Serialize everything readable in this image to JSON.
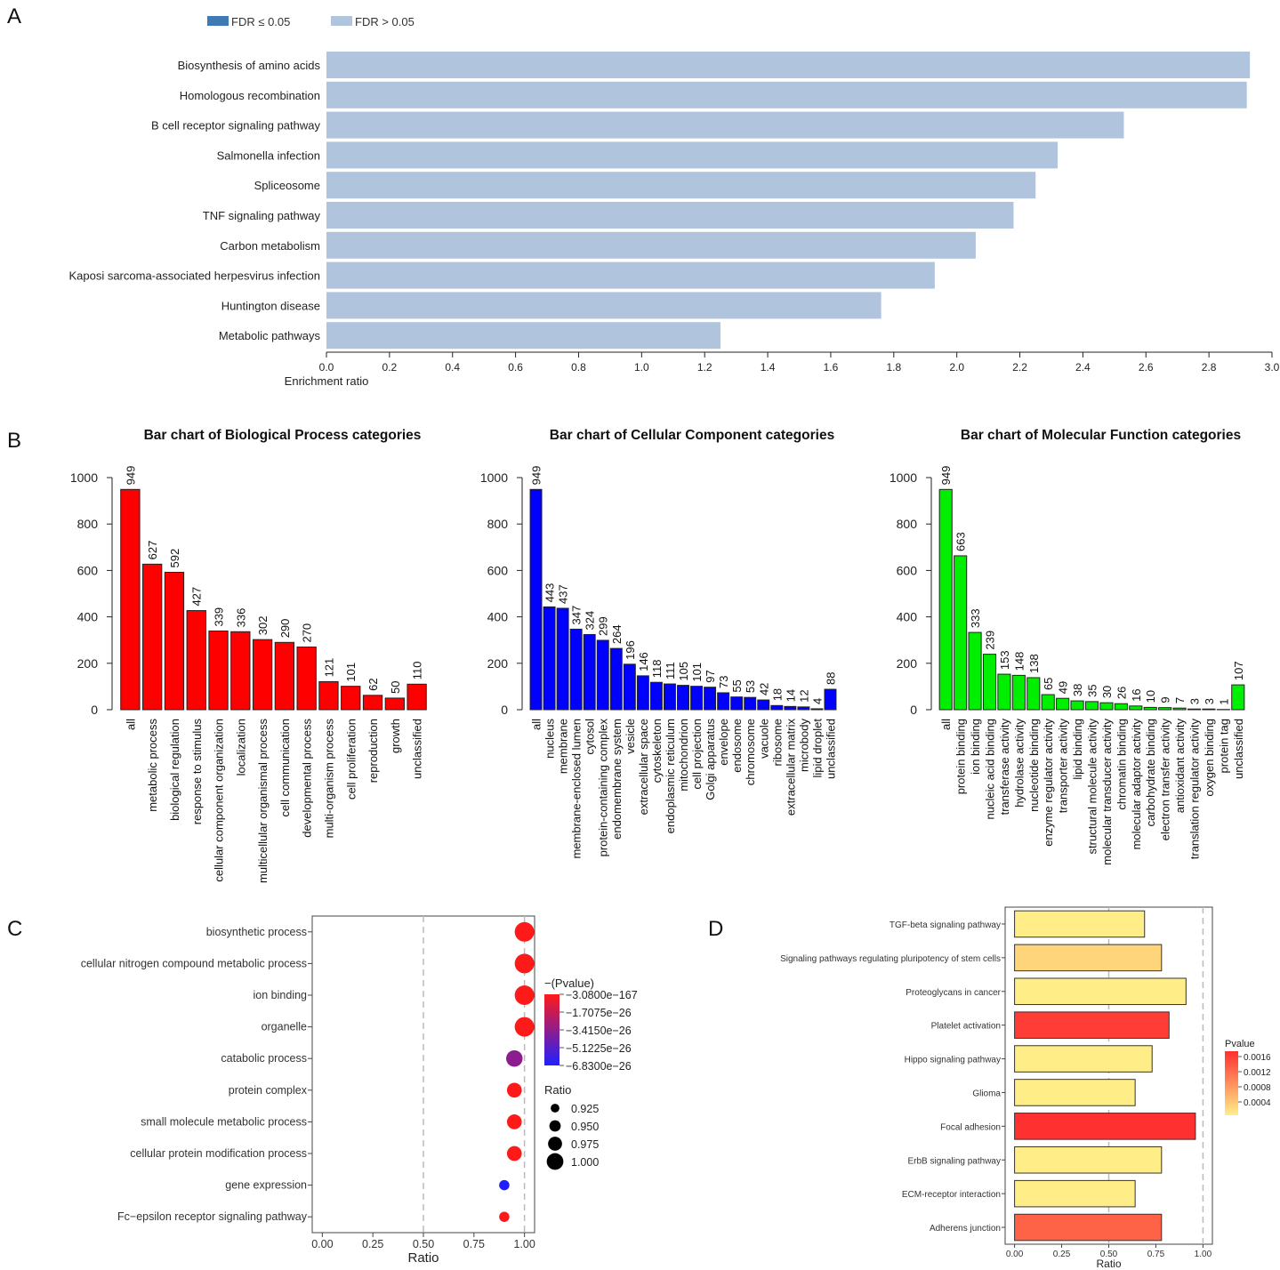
{
  "panel_labels": [
    "A",
    "B",
    "C",
    "D"
  ],
  "chart_data": [
    {
      "panel": "A",
      "type": "bar",
      "orientation": "horizontal",
      "legend": [
        {
          "label": "FDR ≤ 0.05",
          "color": "#3f7ab5"
        },
        {
          "label": "FDR > 0.05",
          "color": "#b0c4de"
        }
      ],
      "categories": [
        "Biosynthesis of amino acids",
        "Homologous recombination",
        "B cell receptor signaling pathway",
        "Salmonella infection",
        "Spliceosome",
        "TNF signaling pathway",
        "Carbon metabolism",
        "Kaposi sarcoma-associated herpesvirus infection",
        "Huntington disease",
        "Metabolic pathways"
      ],
      "values": [
        2.93,
        2.92,
        2.53,
        2.32,
        2.25,
        2.18,
        2.06,
        1.93,
        1.76,
        1.25
      ],
      "bar_color": "#b0c4de",
      "xlabel": "Enrichment ratio",
      "xlim": [
        0,
        3.0
      ],
      "xticks": [
        "0.0",
        "0.2",
        "0.4",
        "0.6",
        "0.8",
        "1.0",
        "1.2",
        "1.4",
        "1.6",
        "1.8",
        "2.0",
        "2.2",
        "2.4",
        "2.6",
        "2.8",
        "3.0"
      ]
    },
    {
      "panel": "B",
      "type": "bar",
      "title": "Bar chart of Biological Process categories",
      "categories": [
        "all",
        "metabolic process",
        "biological regulation",
        "response to stimulus",
        "cellular component organization",
        "localization",
        "multicellular organismal process",
        "cell communication",
        "developmental process",
        "multi-organism process",
        "cell proliferation",
        "reproduction",
        "growth",
        "unclassified"
      ],
      "values": [
        949,
        627,
        592,
        427,
        339,
        336,
        302,
        290,
        270,
        121,
        101,
        62,
        50,
        110
      ],
      "value_labels": [
        "949",
        "627",
        "592",
        "427",
        "339",
        "336",
        "302",
        "290",
        "270",
        "121",
        "101",
        "62",
        "50",
        "110"
      ],
      "color": "#ff0000",
      "ylim": [
        0,
        1000
      ],
      "yticks": [
        "0",
        "200",
        "400",
        "600",
        "800",
        "1000"
      ]
    },
    {
      "panel": "B",
      "type": "bar",
      "title": "Bar chart of Cellular Component categories",
      "categories": [
        "all",
        "nucleus",
        "membrane",
        "membrane-enclosed lumen",
        "cytosol",
        "protein-containing complex",
        "endomembrane system",
        "vesicle",
        "extracellular space",
        "cytoskeleton",
        "endoplasmic reticulum",
        "mitochondrion",
        "cell projection",
        "Golgi apparatus",
        "envelope",
        "endosome",
        "chromosome",
        "vacuole",
        "ribosome",
        "extracellular matrix",
        "microbody",
        "lipid droplet",
        "unclassified"
      ],
      "values": [
        949,
        443,
        437,
        347,
        324,
        299,
        264,
        196,
        146,
        118,
        111,
        105,
        101,
        97,
        73,
        55,
        53,
        42,
        18,
        14,
        12,
        4,
        88
      ],
      "value_labels": [
        "949",
        "443",
        "437",
        "347",
        "324",
        "299",
        "264",
        "196",
        "146",
        "118",
        "111",
        "105",
        "101",
        "97",
        "73",
        "55",
        "53",
        "42",
        "18",
        "14",
        "12",
        "4",
        "88"
      ],
      "color": "#0000ff",
      "ylim": [
        0,
        1000
      ],
      "yticks": [
        "0",
        "200",
        "400",
        "600",
        "800",
        "1000"
      ]
    },
    {
      "panel": "B",
      "type": "bar",
      "title": "Bar chart of Molecular Function categories",
      "categories": [
        "all",
        "protein binding",
        "ion binding",
        "nucleic acid binding",
        "transferase activity",
        "hydrolase activity",
        "nucleotide binding",
        "enzyme regulator activity",
        "transporter activity",
        "lipid binding",
        "structural molecule activity",
        "molecular transducer activity",
        "chromatin binding",
        "molecular adaptor activity",
        "carbohydrate binding",
        "electron transfer activity",
        "antioxidant activity",
        "translation regulator activity",
        "oxygen binding",
        "protein tag",
        "unclassified"
      ],
      "values": [
        949,
        663,
        333,
        239,
        153,
        148,
        138,
        65,
        49,
        38,
        35,
        30,
        26,
        16,
        10,
        9,
        7,
        3,
        3,
        1,
        107
      ],
      "value_labels": [
        "949",
        "663",
        "333",
        "239",
        "153",
        "148",
        "138",
        "65",
        "49",
        "38",
        "35",
        "30",
        "26",
        "16",
        "10",
        "9",
        "7",
        "3",
        "3",
        "1",
        "107"
      ],
      "color": "#00ee00",
      "ylim": [
        0,
        1000
      ],
      "yticks": [
        "0",
        "200",
        "400",
        "600",
        "800",
        "1000"
      ]
    },
    {
      "panel": "C",
      "type": "scatter",
      "categories": [
        "biosynthetic process",
        "cellular nitrogen compound metabolic process",
        "ion binding",
        "organelle",
        "catabolic process",
        "protein complex",
        "small molecule metabolic process",
        "cellular protein modification process",
        "gene expression",
        "Fc−epsilon receptor signaling pathway"
      ],
      "ratio": [
        1.0,
        1.0,
        1.0,
        1.0,
        0.95,
        0.95,
        0.95,
        0.95,
        0.9,
        0.9
      ],
      "bubble_size": [
        1.0,
        1.0,
        1.0,
        1.0,
        0.975,
        0.962,
        0.962,
        0.962,
        0.925,
        0.925
      ],
      "color_value": [
        -3.08e-167,
        -3.08e-167,
        -3.08e-167,
        -3.08e-167,
        -3.5e-26,
        -3.08e-167,
        -3.08e-167,
        -3.08e-167,
        -6.83e-26,
        -3.08e-167
      ],
      "xlabel": "Ratio",
      "xlim": [
        -0.05,
        1.05
      ],
      "xticks": [
        "0.00",
        "0.25",
        "0.50",
        "0.75",
        "1.00"
      ],
      "reference_lines": [
        0.5,
        1.0
      ],
      "color_legend_title": "−(Pvalue)",
      "color_legend_labels": [
        "−3.0800e−167",
        "−1.7075e−26",
        "−3.4150e−26",
        "−5.1225e−26",
        "−6.8300e−26"
      ],
      "size_legend_title": "Ratio",
      "size_legend_labels": [
        "0.925",
        "0.950",
        "0.975",
        "1.000"
      ],
      "high_color": "#ff1a1a",
      "low_color": "#2020ff"
    },
    {
      "panel": "D",
      "type": "bar",
      "orientation": "horizontal",
      "categories": [
        "TGF-beta signaling pathway",
        "Signaling pathways regulating pluripotency of stem cells",
        "Proteoglycans in cancer",
        "Platelet activation",
        "Hippo signaling pathway",
        "Glioma",
        "Focal adhesion",
        "ErbB signaling pathway",
        "ECM-receptor interaction",
        "Adherens junction"
      ],
      "values": [
        0.69,
        0.78,
        0.91,
        0.82,
        0.73,
        0.64,
        0.96,
        0.78,
        0.64,
        0.78
      ],
      "pvalue": [
        0.0001,
        0.0003,
        0.0001,
        0.0015,
        0.0001,
        0.0001,
        0.0016,
        0.0001,
        0.0001,
        0.0012
      ],
      "xlabel": "Ratio",
      "xlim": [
        -0.05,
        1.05
      ],
      "xticks": [
        "0.00",
        "0.25",
        "0.50",
        "0.75",
        "1.00"
      ],
      "reference_lines": [
        0.5,
        1.0
      ],
      "legend_title": "Pvalue",
      "legend_labels": [
        "0.0016",
        "0.0012",
        "0.0008",
        "0.0004"
      ],
      "gradient_low_color": "#ffee88",
      "gradient_high_color": "#ff3030"
    }
  ]
}
